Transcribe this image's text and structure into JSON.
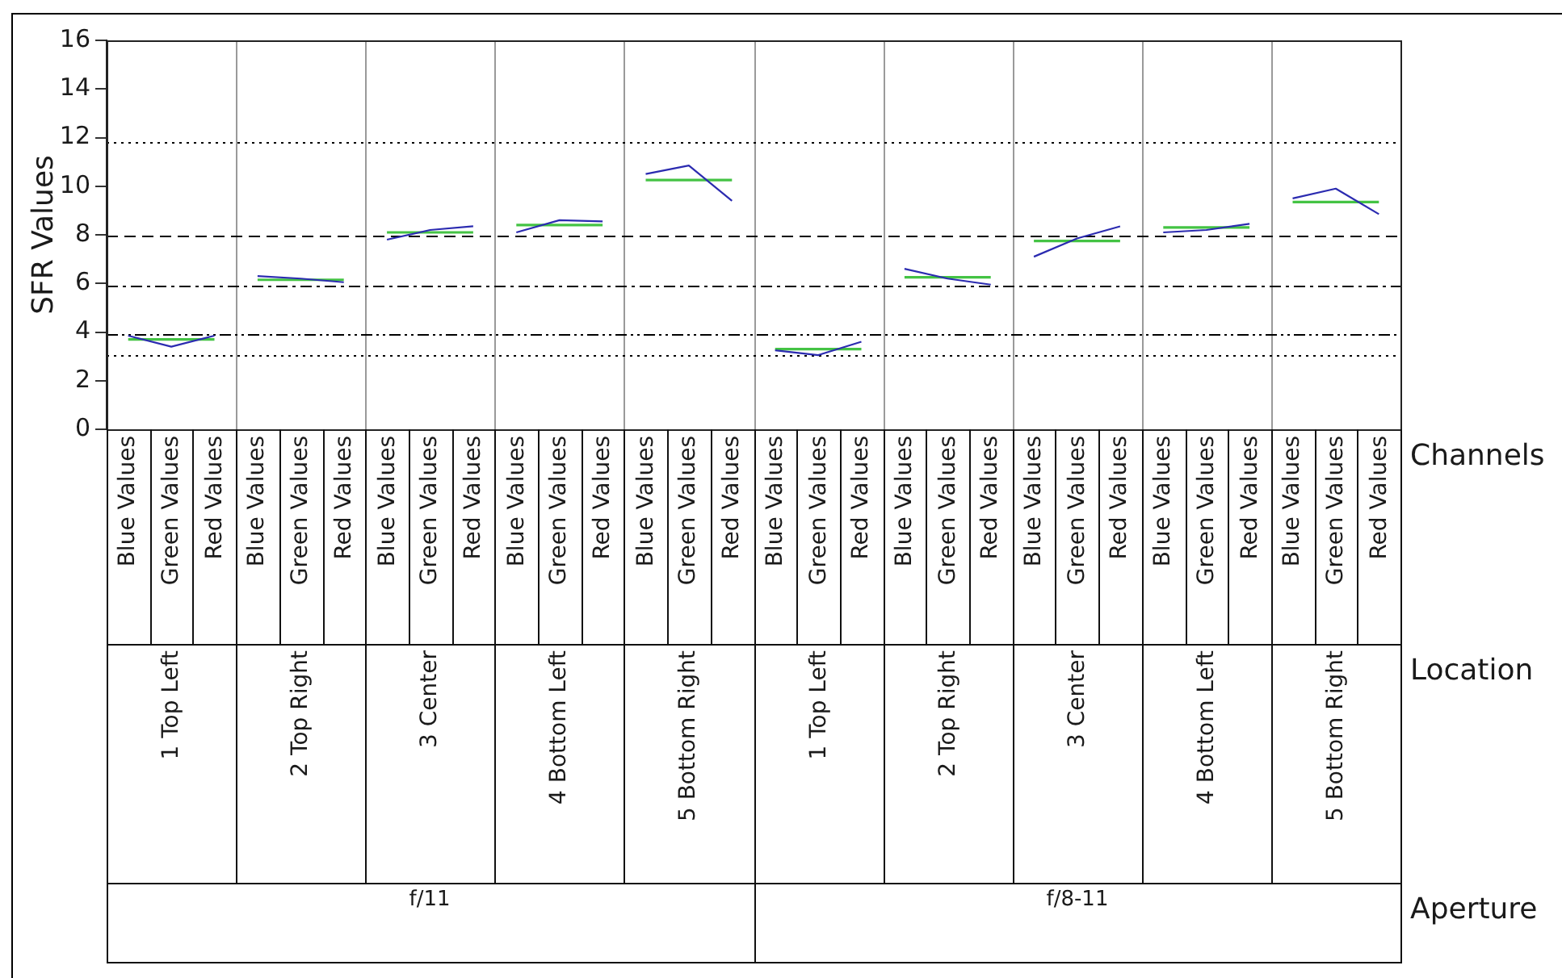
{
  "chart_data": {
    "type": "line",
    "ylabel": "SFR Values",
    "categories": [
      "Blue Values",
      "Green Values",
      "Red Values",
      "Blue Values",
      "Green Values",
      "Red Values",
      "Blue Values",
      "Green Values",
      "Red Values",
      "Blue Values",
      "Green Values",
      "Red Values",
      "Blue Values",
      "Green Values",
      "Red Values",
      "Blue Values",
      "Green Values",
      "Red Values",
      "Blue Values",
      "Green Values",
      "Red Values",
      "Blue Values",
      "Green Values",
      "Red Values",
      "Blue Values",
      "Green Values",
      "Red Values",
      "Blue Values",
      "Green Values",
      "Red Values"
    ],
    "ylim": [
      0,
      16
    ],
    "yticks": [
      0,
      2,
      4,
      6,
      8,
      10,
      12,
      14,
      16
    ],
    "series": [
      {
        "color": "#2b2bb0",
        "values": [
          3.85,
          3.4,
          3.85,
          null,
          null,
          null,
          null,
          null,
          null,
          null,
          null,
          null,
          null,
          null,
          null,
          null,
          null,
          null,
          null,
          null,
          null,
          null,
          null,
          null,
          null,
          null,
          null,
          null,
          null,
          null
        ]
      },
      {
        "color": "#2b2bb0",
        "values": [
          null,
          null,
          null,
          6.3,
          6.2,
          6.05,
          null,
          null,
          null,
          null,
          null,
          null,
          null,
          null,
          null,
          null,
          null,
          null,
          null,
          null,
          null,
          null,
          null,
          null,
          null,
          null,
          null,
          null,
          null,
          null
        ]
      },
      {
        "color": "#2b2bb0",
        "values": [
          null,
          null,
          null,
          null,
          null,
          null,
          7.8,
          8.2,
          8.35,
          null,
          null,
          null,
          null,
          null,
          null,
          null,
          null,
          null,
          null,
          null,
          null,
          null,
          null,
          null,
          null,
          null,
          null,
          null,
          null,
          null
        ]
      },
      {
        "color": "#2b2bb0",
        "values": [
          null,
          null,
          null,
          null,
          null,
          null,
          null,
          null,
          null,
          8.1,
          8.6,
          8.55,
          null,
          null,
          null,
          null,
          null,
          null,
          null,
          null,
          null,
          null,
          null,
          null,
          null,
          null,
          null,
          null,
          null,
          null
        ]
      },
      {
        "color": "#2b2bb0",
        "values": [
          null,
          null,
          null,
          null,
          null,
          null,
          null,
          null,
          null,
          null,
          null,
          null,
          10.5,
          10.85,
          9.4,
          null,
          null,
          null,
          null,
          null,
          null,
          null,
          null,
          null,
          null,
          null,
          null,
          null,
          null,
          null
        ]
      },
      {
        "color": "#2b2bb0",
        "values": [
          null,
          null,
          null,
          null,
          null,
          null,
          null,
          null,
          null,
          null,
          null,
          null,
          null,
          null,
          null,
          3.25,
          3.05,
          3.6,
          null,
          null,
          null,
          null,
          null,
          null,
          null,
          null,
          null,
          null,
          null,
          null
        ]
      },
      {
        "color": "#2b2bb0",
        "values": [
          null,
          null,
          null,
          null,
          null,
          null,
          null,
          null,
          null,
          null,
          null,
          null,
          null,
          null,
          null,
          null,
          null,
          null,
          6.6,
          6.2,
          5.95,
          null,
          null,
          null,
          null,
          null,
          null,
          null,
          null,
          null
        ]
      },
      {
        "color": "#2b2bb0",
        "values": [
          null,
          null,
          null,
          null,
          null,
          null,
          null,
          null,
          null,
          null,
          null,
          null,
          null,
          null,
          null,
          null,
          null,
          null,
          null,
          null,
          null,
          7.1,
          7.85,
          8.35,
          null,
          null,
          null,
          null,
          null,
          null
        ]
      },
      {
        "color": "#2b2bb0",
        "values": [
          null,
          null,
          null,
          null,
          null,
          null,
          null,
          null,
          null,
          null,
          null,
          null,
          null,
          null,
          null,
          null,
          null,
          null,
          null,
          null,
          null,
          null,
          null,
          null,
          8.1,
          8.2,
          8.45,
          null,
          null,
          null
        ]
      },
      {
        "color": "#2b2bb0",
        "values": [
          null,
          null,
          null,
          null,
          null,
          null,
          null,
          null,
          null,
          null,
          null,
          null,
          null,
          null,
          null,
          null,
          null,
          null,
          null,
          null,
          null,
          null,
          null,
          null,
          null,
          null,
          null,
          9.5,
          9.9,
          8.85
        ]
      },
      {
        "type": "step",
        "color": "#44c344",
        "values": [
          3.7,
          3.7,
          3.7,
          null,
          null,
          null,
          null,
          null,
          null,
          null,
          null,
          null,
          null,
          null,
          null,
          null,
          null,
          null,
          null,
          null,
          null,
          null,
          null,
          null,
          null,
          null,
          null,
          null,
          null,
          null
        ]
      },
      {
        "type": "step",
        "color": "#44c344",
        "values": [
          null,
          null,
          null,
          6.15,
          6.15,
          6.15,
          null,
          null,
          null,
          null,
          null,
          null,
          null,
          null,
          null,
          null,
          null,
          null,
          null,
          null,
          null,
          null,
          null,
          null,
          null,
          null,
          null,
          null,
          null,
          null
        ]
      },
      {
        "type": "step",
        "color": "#44c344",
        "values": [
          null,
          null,
          null,
          null,
          null,
          null,
          8.1,
          8.1,
          8.1,
          null,
          null,
          null,
          null,
          null,
          null,
          null,
          null,
          null,
          null,
          null,
          null,
          null,
          null,
          null,
          null,
          null,
          null,
          null,
          null,
          null
        ]
      },
      {
        "type": "step",
        "color": "#44c344",
        "values": [
          null,
          null,
          null,
          null,
          null,
          null,
          null,
          null,
          null,
          8.4,
          8.4,
          8.4,
          null,
          null,
          null,
          null,
          null,
          null,
          null,
          null,
          null,
          null,
          null,
          null,
          null,
          null,
          null,
          null,
          null,
          null
        ]
      },
      {
        "type": "step",
        "color": "#44c344",
        "values": [
          null,
          null,
          null,
          null,
          null,
          null,
          null,
          null,
          null,
          null,
          null,
          null,
          10.25,
          10.25,
          10.25,
          null,
          null,
          null,
          null,
          null,
          null,
          null,
          null,
          null,
          null,
          null,
          null,
          null,
          null,
          null
        ]
      },
      {
        "type": "step",
        "color": "#44c344",
        "values": [
          null,
          null,
          null,
          null,
          null,
          null,
          null,
          null,
          null,
          null,
          null,
          null,
          null,
          null,
          null,
          3.3,
          3.3,
          3.3,
          null,
          null,
          null,
          null,
          null,
          null,
          null,
          null,
          null,
          null,
          null,
          null
        ]
      },
      {
        "type": "step",
        "color": "#44c344",
        "values": [
          null,
          null,
          null,
          null,
          null,
          null,
          null,
          null,
          null,
          null,
          null,
          null,
          null,
          null,
          null,
          null,
          null,
          null,
          6.25,
          6.25,
          6.25,
          null,
          null,
          null,
          null,
          null,
          null,
          null,
          null,
          null
        ]
      },
      {
        "type": "step",
        "color": "#44c344",
        "values": [
          null,
          null,
          null,
          null,
          null,
          null,
          null,
          null,
          null,
          null,
          null,
          null,
          null,
          null,
          null,
          null,
          null,
          null,
          null,
          null,
          null,
          7.75,
          7.75,
          7.75,
          null,
          null,
          null,
          null,
          null,
          null
        ]
      },
      {
        "type": "step",
        "color": "#44c344",
        "values": [
          null,
          null,
          null,
          null,
          null,
          null,
          null,
          null,
          null,
          null,
          null,
          null,
          null,
          null,
          null,
          null,
          null,
          null,
          null,
          null,
          null,
          null,
          null,
          null,
          8.3,
          8.3,
          8.3,
          null,
          null,
          null
        ]
      },
      {
        "type": "step",
        "color": "#44c344",
        "values": [
          null,
          null,
          null,
          null,
          null,
          null,
          null,
          null,
          null,
          null,
          null,
          null,
          null,
          null,
          null,
          null,
          null,
          null,
          null,
          null,
          null,
          null,
          null,
          null,
          null,
          null,
          null,
          9.35,
          9.35,
          9.35
        ]
      }
    ],
    "ref_lines": [
      {
        "axis": "y",
        "value": 11.85,
        "line_style": "dotted",
        "color": "#000000"
      },
      {
        "axis": "y",
        "value": 7.95,
        "line_style": "dashed",
        "color": "#000000"
      },
      {
        "axis": "y",
        "value": 5.9,
        "line_style": "dashdot",
        "color": "#000000"
      },
      {
        "axis": "y",
        "value": 3.95,
        "line_style": "dashdotdot",
        "color": "#000000"
      },
      {
        "axis": "y",
        "value": 3.05,
        "line_style": "dotted",
        "color": "#000000"
      }
    ],
    "annotations": [
      "Channels",
      "Location",
      "Aperture",
      "1 Top Left",
      "2 Top Right",
      "3 Center",
      "4 Bottom Left",
      "5 Bottom Right",
      "1 Top Left",
      "2 Top Right",
      "3 Center",
      "4 Bottom Left",
      "5 Bottom Right",
      "f/11",
      "f/8-11"
    ]
  }
}
